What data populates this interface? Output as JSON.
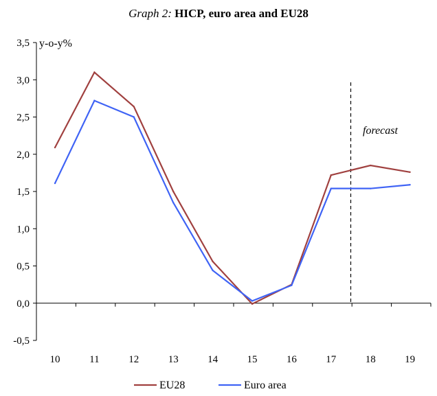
{
  "chart_data": {
    "type": "line",
    "title_prefix": "Graph 2:",
    "title": "HICP, euro area and EU28",
    "ylabel": "y-o-y%",
    "categories": [
      "10",
      "11",
      "12",
      "13",
      "14",
      "15",
      "16",
      "17",
      "18",
      "19"
    ],
    "series": [
      {
        "name": "EU28",
        "color": "#a0403f",
        "values": [
          2.09,
          3.1,
          2.64,
          1.5,
          0.56,
          -0.01,
          0.25,
          1.72,
          1.85,
          1.76
        ]
      },
      {
        "name": "Euro area",
        "color": "#3f63f5",
        "values": [
          1.61,
          2.72,
          2.5,
          1.35,
          0.44,
          0.03,
          0.24,
          1.54,
          1.54,
          1.59
        ]
      }
    ],
    "ylim": [
      -0.5,
      3.5
    ],
    "yticks": [
      "-0,5",
      "0,0",
      "0,5",
      "1,0",
      "1,5",
      "2,0",
      "2,5",
      "3,0",
      "3,5"
    ],
    "ytick_values": [
      -0.5,
      0,
      0.5,
      1.0,
      1.5,
      2.0,
      2.5,
      3.0,
      3.5
    ],
    "forecast_label": "forecast",
    "forecast_after_category": "17",
    "grid": false,
    "legend_position": "bottom"
  }
}
